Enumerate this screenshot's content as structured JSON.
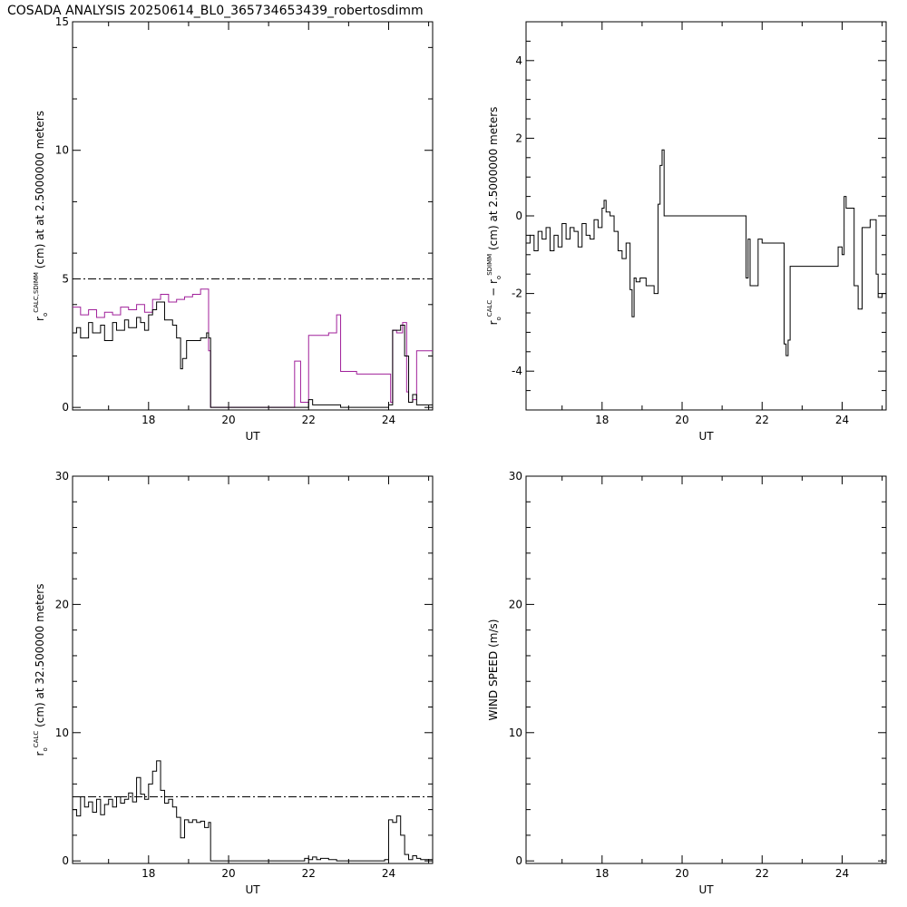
{
  "title": "COSADA ANALYSIS 20250614_BL0_365734653439_robertosdimm",
  "colors": {
    "axes": "#000000",
    "series_black": "#000000",
    "series_magenta": "#a0209a"
  },
  "chart_data": [
    {
      "id": "p1",
      "type": "line",
      "xlabel": "UT",
      "ylabel_parts": {
        "r": "r",
        "sub": "o",
        "sup": "CALC,SDIMM",
        "rest": "(cm) at  at 2.5000000 meters"
      },
      "xlim": [
        16.1,
        25.1
      ],
      "ylim": [
        -0.1,
        15
      ],
      "xticks": [
        18,
        20,
        22,
        24
      ],
      "yticks": [
        0,
        5,
        10,
        15
      ],
      "ref_line": 5,
      "series": [
        {
          "color": "#a0209a",
          "step": true,
          "x": [
            16.1,
            16.3,
            16.5,
            16.7,
            16.9,
            17.1,
            17.3,
            17.5,
            17.7,
            17.9,
            18.1,
            18.3,
            18.5,
            18.7,
            18.9,
            19.1,
            19.3,
            19.45,
            19.5,
            19.55,
            21.6,
            21.65,
            21.8,
            21.85,
            22.0,
            22.1,
            22.5,
            22.7,
            22.8,
            23.2,
            23.6,
            24.0,
            24.05,
            24.1,
            24.2,
            24.35,
            24.45,
            24.5,
            24.6,
            24.7,
            25.1
          ],
          "y": [
            3.9,
            3.6,
            3.8,
            3.5,
            3.7,
            3.6,
            3.9,
            3.8,
            4.0,
            3.7,
            4.2,
            4.4,
            4.1,
            4.2,
            4.3,
            4.4,
            4.6,
            4.6,
            2.2,
            0,
            0,
            1.8,
            0.2,
            0.2,
            2.8,
            2.8,
            2.9,
            3.6,
            1.4,
            1.3,
            1.3,
            1.3,
            0.2,
            3.0,
            2.9,
            3.3,
            0.6,
            0.2,
            0.3,
            2.2,
            2.2
          ]
        },
        {
          "color": "#000000",
          "step": true,
          "x": [
            16.1,
            16.2,
            16.3,
            16.5,
            16.6,
            16.8,
            16.9,
            17.1,
            17.2,
            17.4,
            17.5,
            17.7,
            17.8,
            17.9,
            18.0,
            18.1,
            18.2,
            18.4,
            18.6,
            18.7,
            18.8,
            18.85,
            18.95,
            19.1,
            19.3,
            19.45,
            19.5,
            19.55,
            21.6,
            22.0,
            22.1,
            22.5,
            22.7,
            22.8,
            23.9,
            24.0,
            24.05,
            24.1,
            24.3,
            24.4,
            24.5,
            24.6,
            24.7,
            25.1
          ],
          "y": [
            2.9,
            3.1,
            2.7,
            3.3,
            2.9,
            3.2,
            2.6,
            3.3,
            3.0,
            3.4,
            3.1,
            3.5,
            3.3,
            3.0,
            3.6,
            3.8,
            4.1,
            3.4,
            3.2,
            2.7,
            1.5,
            1.9,
            2.6,
            2.6,
            2.7,
            2.9,
            2.7,
            0,
            0,
            0.3,
            0.1,
            0.1,
            0.1,
            0,
            0,
            0.1,
            0.1,
            3.0,
            3.2,
            2.0,
            0.2,
            0.5,
            0.1,
            0.1
          ]
        }
      ]
    },
    {
      "id": "p2",
      "type": "line",
      "xlabel": "UT",
      "ylabel_parts": {
        "r1": "r",
        "sub1": "o",
        "sup1": "CALC",
        "dash": " − ",
        "r2": "r",
        "sub2": "o",
        "sup2": "SDIMM",
        "rest": "(cm) at 2.5000000 meters"
      },
      "xlim": [
        16.1,
        25.1
      ],
      "ylim": [
        -5,
        5
      ],
      "xticks": [
        18,
        20,
        22,
        24
      ],
      "yticks": [
        -4,
        -2,
        0,
        2,
        4
      ],
      "series": [
        {
          "color": "#000000",
          "step": true,
          "x": [
            16.1,
            16.2,
            16.3,
            16.4,
            16.5,
            16.6,
            16.7,
            16.8,
            16.9,
            17.0,
            17.1,
            17.2,
            17.3,
            17.4,
            17.5,
            17.6,
            17.7,
            17.8,
            17.9,
            18.0,
            18.05,
            18.1,
            18.2,
            18.3,
            18.4,
            18.5,
            18.6,
            18.7,
            18.75,
            18.8,
            18.85,
            18.95,
            19.1,
            19.3,
            19.4,
            19.45,
            19.5,
            19.55,
            21.55,
            21.6,
            21.65,
            21.7,
            21.9,
            22.0,
            22.5,
            22.55,
            22.6,
            22.65,
            22.7,
            23.8,
            23.9,
            24.0,
            24.05,
            24.1,
            24.3,
            24.4,
            24.5,
            24.6,
            24.7,
            24.85,
            24.9,
            25.0,
            25.1
          ],
          "y": [
            -0.7,
            -0.5,
            -0.9,
            -0.4,
            -0.6,
            -0.3,
            -0.9,
            -0.5,
            -0.8,
            -0.2,
            -0.6,
            -0.3,
            -0.4,
            -0.8,
            -0.2,
            -0.5,
            -0.6,
            -0.1,
            -0.3,
            0.2,
            0.4,
            0.1,
            0.0,
            -0.4,
            -0.9,
            -1.1,
            -0.7,
            -1.9,
            -2.6,
            -1.6,
            -1.7,
            -1.6,
            -1.8,
            -2.0,
            0.3,
            1.3,
            1.7,
            0.0,
            0.0,
            -1.6,
            -0.6,
            -1.8,
            -0.6,
            -0.7,
            -0.7,
            -3.3,
            -3.6,
            -3.2,
            -1.3,
            -1.3,
            -0.8,
            -1.0,
            0.5,
            0.2,
            -1.8,
            -2.4,
            -0.3,
            -0.3,
            -0.1,
            -1.5,
            -2.1,
            -2.0,
            -2.1
          ]
        }
      ]
    },
    {
      "id": "p3",
      "type": "line",
      "xlabel": "UT",
      "ylabel_parts": {
        "r": "r",
        "sub": "o",
        "sup": "CALC",
        "rest": "(cm) at 32.500000 meters"
      },
      "xlim": [
        16.1,
        25.1
      ],
      "ylim": [
        -0.2,
        30
      ],
      "xticks": [
        18,
        20,
        22,
        24
      ],
      "yticks": [
        0,
        10,
        20,
        30
      ],
      "ref_line": 5,
      "series": [
        {
          "color": "#000000",
          "step": true,
          "x": [
            16.1,
            16.2,
            16.3,
            16.4,
            16.5,
            16.6,
            16.7,
            16.8,
            16.9,
            17.0,
            17.1,
            17.2,
            17.3,
            17.4,
            17.5,
            17.6,
            17.7,
            17.8,
            17.9,
            18.0,
            18.1,
            18.2,
            18.3,
            18.4,
            18.5,
            18.6,
            18.7,
            18.8,
            18.9,
            19.0,
            19.1,
            19.2,
            19.3,
            19.4,
            19.5,
            19.55,
            21.8,
            21.9,
            22.0,
            22.1,
            22.2,
            22.3,
            22.5,
            22.7,
            23.9,
            24.0,
            24.1,
            24.2,
            24.3,
            24.4,
            24.5,
            24.6,
            24.7,
            24.8,
            25.1
          ],
          "y": [
            4.0,
            3.5,
            5.0,
            4.2,
            4.6,
            3.8,
            4.8,
            3.6,
            4.4,
            4.8,
            4.2,
            5.0,
            4.5,
            4.8,
            5.3,
            4.6,
            6.5,
            5.2,
            4.8,
            6.0,
            7.0,
            7.8,
            5.5,
            4.5,
            4.8,
            4.2,
            3.4,
            1.8,
            3.2,
            3.0,
            3.2,
            3.0,
            3.1,
            2.6,
            3.0,
            0,
            0,
            0.2,
            0.1,
            0.3,
            0.1,
            0.2,
            0.1,
            0,
            0.1,
            3.2,
            3.0,
            3.5,
            2.0,
            0.5,
            0.1,
            0.4,
            0.2,
            0.1,
            0.1
          ]
        }
      ]
    },
    {
      "id": "p4",
      "type": "line",
      "xlabel": "UT",
      "ylabel_parts": {
        "text": "WIND SPEED (m/s)"
      },
      "xlim": [
        16.1,
        25.1
      ],
      "ylim": [
        -0.2,
        30
      ],
      "xticks": [
        18,
        20,
        22,
        24
      ],
      "yticks": [
        0,
        10,
        20,
        30
      ],
      "series": []
    }
  ]
}
